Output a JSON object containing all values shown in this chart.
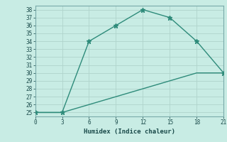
{
  "xlabel": "Humidex (Indice chaleur)",
  "x_line1": [
    0,
    3,
    6,
    9,
    12,
    15,
    18,
    21
  ],
  "y_line1": [
    25,
    25,
    34,
    36,
    38,
    37,
    34,
    30
  ],
  "x_line2": [
    0,
    3,
    6,
    9,
    12,
    15,
    18,
    21
  ],
  "y_line2": [
    25,
    25,
    26,
    27,
    28,
    29,
    30,
    30
  ],
  "line_color": "#2e8b7a",
  "bg_color": "#c8ece4",
  "grid_color": "#b0d4cc",
  "xlim": [
    0,
    21
  ],
  "ylim": [
    25,
    38
  ],
  "xticks": [
    0,
    3,
    6,
    9,
    12,
    15,
    18,
    21
  ],
  "yticks": [
    25,
    26,
    27,
    28,
    29,
    30,
    31,
    32,
    33,
    34,
    35,
    36,
    37,
    38
  ],
  "marker": "*",
  "marker_size": 5,
  "line_width": 1.0
}
